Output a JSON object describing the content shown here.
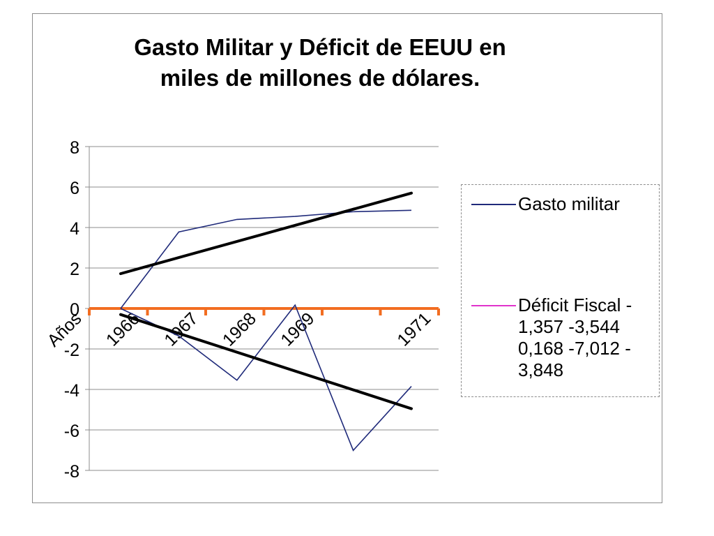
{
  "chart_data": {
    "type": "line",
    "title": "Gasto Militar y Déficit de EEUU en miles de millones de dólares.",
    "title_lines": [
      "Gasto Militar y Déficit de EEUU en",
      "miles de millones de dólares."
    ],
    "categories": [
      "Años",
      "1966",
      "1967",
      "1968",
      "1969",
      "",
      "1971"
    ],
    "x_tick_labels": [
      "Años",
      "1966",
      "1967",
      "1968",
      "1969",
      "1971"
    ],
    "y_ticks": [
      8,
      6,
      4,
      2,
      0,
      -2,
      -4,
      -6,
      -8
    ],
    "ylim": [
      -8,
      8
    ],
    "grid": true,
    "legend_position": "right",
    "zero_line_color": "#f26d21",
    "series": [
      {
        "name": "Gasto militar",
        "color": "#1f2a7a",
        "x": [
          0,
          1,
          2,
          3,
          4,
          5
        ],
        "values": [
          0.0,
          3.78,
          4.4,
          4.55,
          4.78,
          4.85
        ]
      },
      {
        "name": "Déficit Fiscal - 1,357 -3,544 0,168 -7,012 - 3,848",
        "legend_color": "#e033cc",
        "color": "#1f2a7a",
        "x": [
          0,
          1,
          2,
          2.55,
          3,
          4,
          5
        ],
        "values": [
          0.0,
          -1.357,
          -3.544,
          -1.5,
          0.168,
          -7.012,
          -3.848
        ]
      }
    ],
    "trendlines": [
      {
        "of": "Gasto militar",
        "color": "#000000",
        "x": [
          0,
          5
        ],
        "values": [
          1.72,
          5.7
        ]
      },
      {
        "of": "Déficit Fiscal",
        "color": "#000000",
        "x": [
          0,
          5
        ],
        "values": [
          -0.3,
          -4.95
        ]
      }
    ]
  },
  "legend": {
    "entries": [
      {
        "label": "Gasto militar",
        "color": "#1f2a7a"
      },
      {
        "label": "Déficit Fiscal -\n1,357 -3,544\n0,168 -7,012 -\n3,848",
        "color": "#e033cc"
      }
    ]
  }
}
